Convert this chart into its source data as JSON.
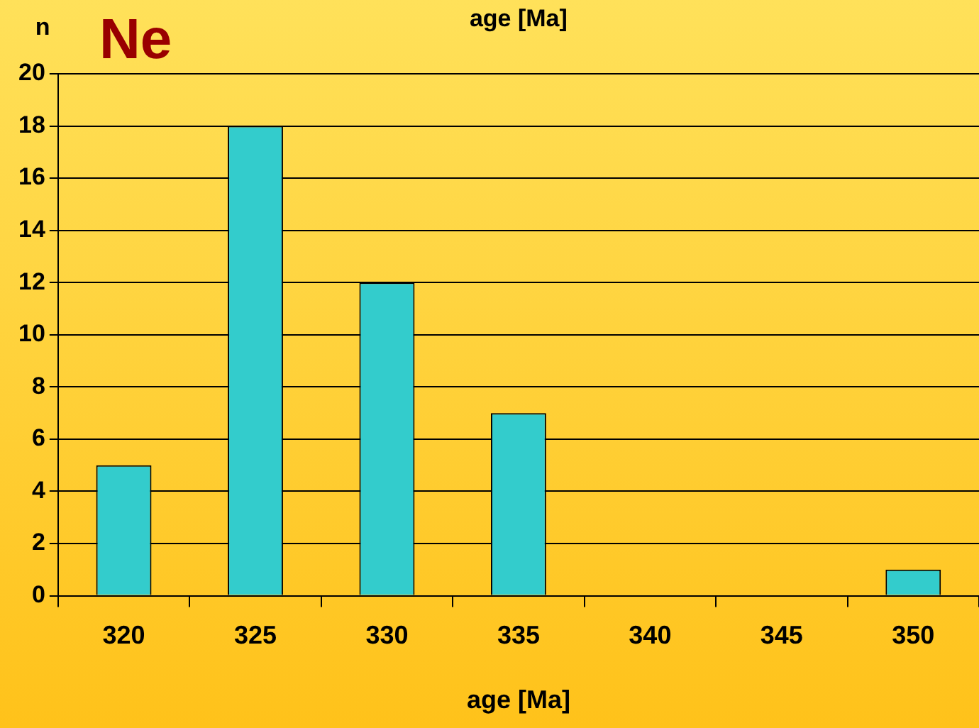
{
  "chart_data": {
    "type": "bar",
    "title": "Ne",
    "ylabel": "n",
    "xlabel": "age [Ma]",
    "annotations": [
      "age [Ma]"
    ],
    "categories": [
      "320",
      "325",
      "330",
      "335",
      "340",
      "345",
      "350"
    ],
    "values": [
      5,
      18,
      12,
      7,
      0,
      0,
      1
    ],
    "color": "#33cccc",
    "ylim": [
      0,
      20
    ],
    "yticks": [
      0,
      2,
      4,
      6,
      8,
      10,
      12,
      14,
      16,
      18,
      20
    ],
    "grid": "y",
    "legend": false
  }
}
